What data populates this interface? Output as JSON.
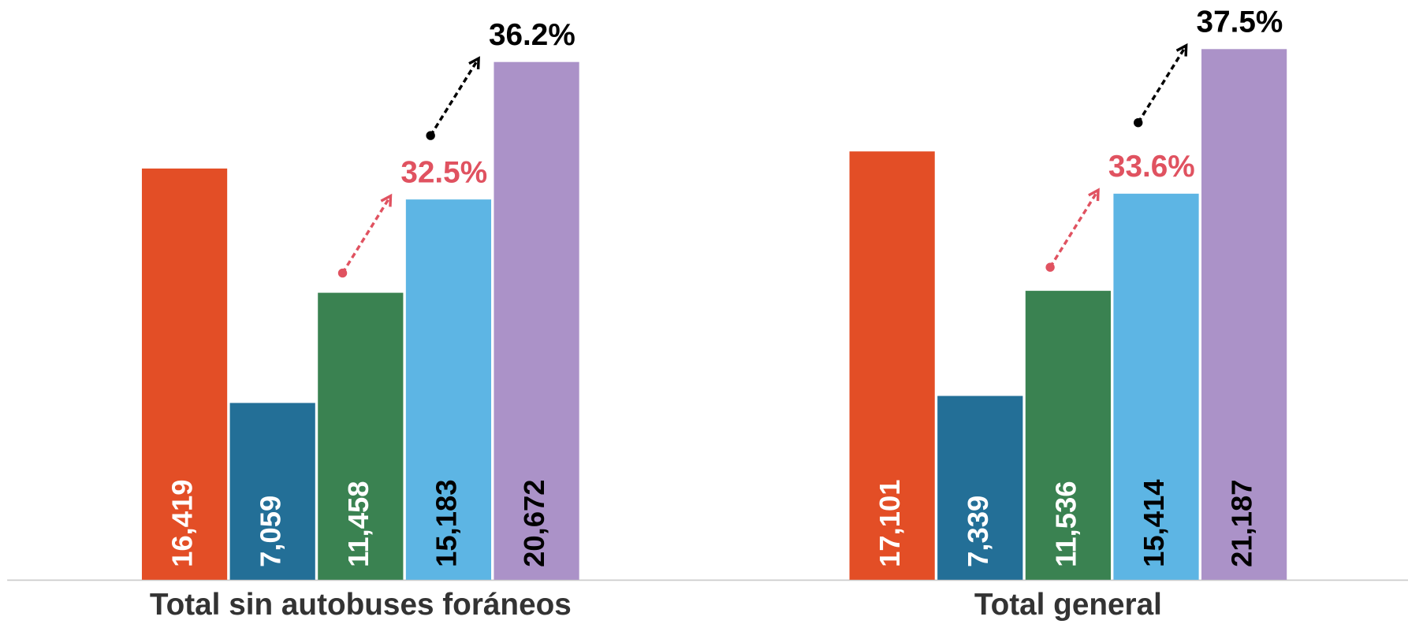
{
  "chart_data": {
    "type": "bar",
    "categories": [
      "Total sin autobuses foráneos",
      "Total general"
    ],
    "series": [
      {
        "color": "#e34e26",
        "label_color": "#ffffff",
        "values": [
          16419,
          17101
        ],
        "value_labels": [
          "16,419",
          "17,101"
        ]
      },
      {
        "color": "#236f97",
        "label_color": "#ffffff",
        "values": [
          7059,
          7339
        ],
        "value_labels": [
          "7,059",
          "7,339"
        ]
      },
      {
        "color": "#3a8251",
        "label_color": "#ffffff",
        "values": [
          11458,
          11536
        ],
        "value_labels": [
          "11,458",
          "11,536"
        ]
      },
      {
        "color": "#5db5e4",
        "label_color": "#000000",
        "values": [
          15183,
          15414
        ],
        "value_labels": [
          "15,183",
          "15,414"
        ]
      },
      {
        "color": "#ab92c8",
        "label_color": "#000000",
        "values": [
          20672,
          21187
        ],
        "value_labels": [
          "20,672",
          "21,187"
        ]
      }
    ],
    "annotations": [
      {
        "text": "32.5%",
        "color": "#e05260"
      },
      {
        "text": "36.2%",
        "color": "#000000"
      },
      {
        "text": "33.6%",
        "color": "#e05260"
      },
      {
        "text": "37.5%",
        "color": "#000000"
      }
    ],
    "ylim": [
      0,
      22000
    ]
  }
}
